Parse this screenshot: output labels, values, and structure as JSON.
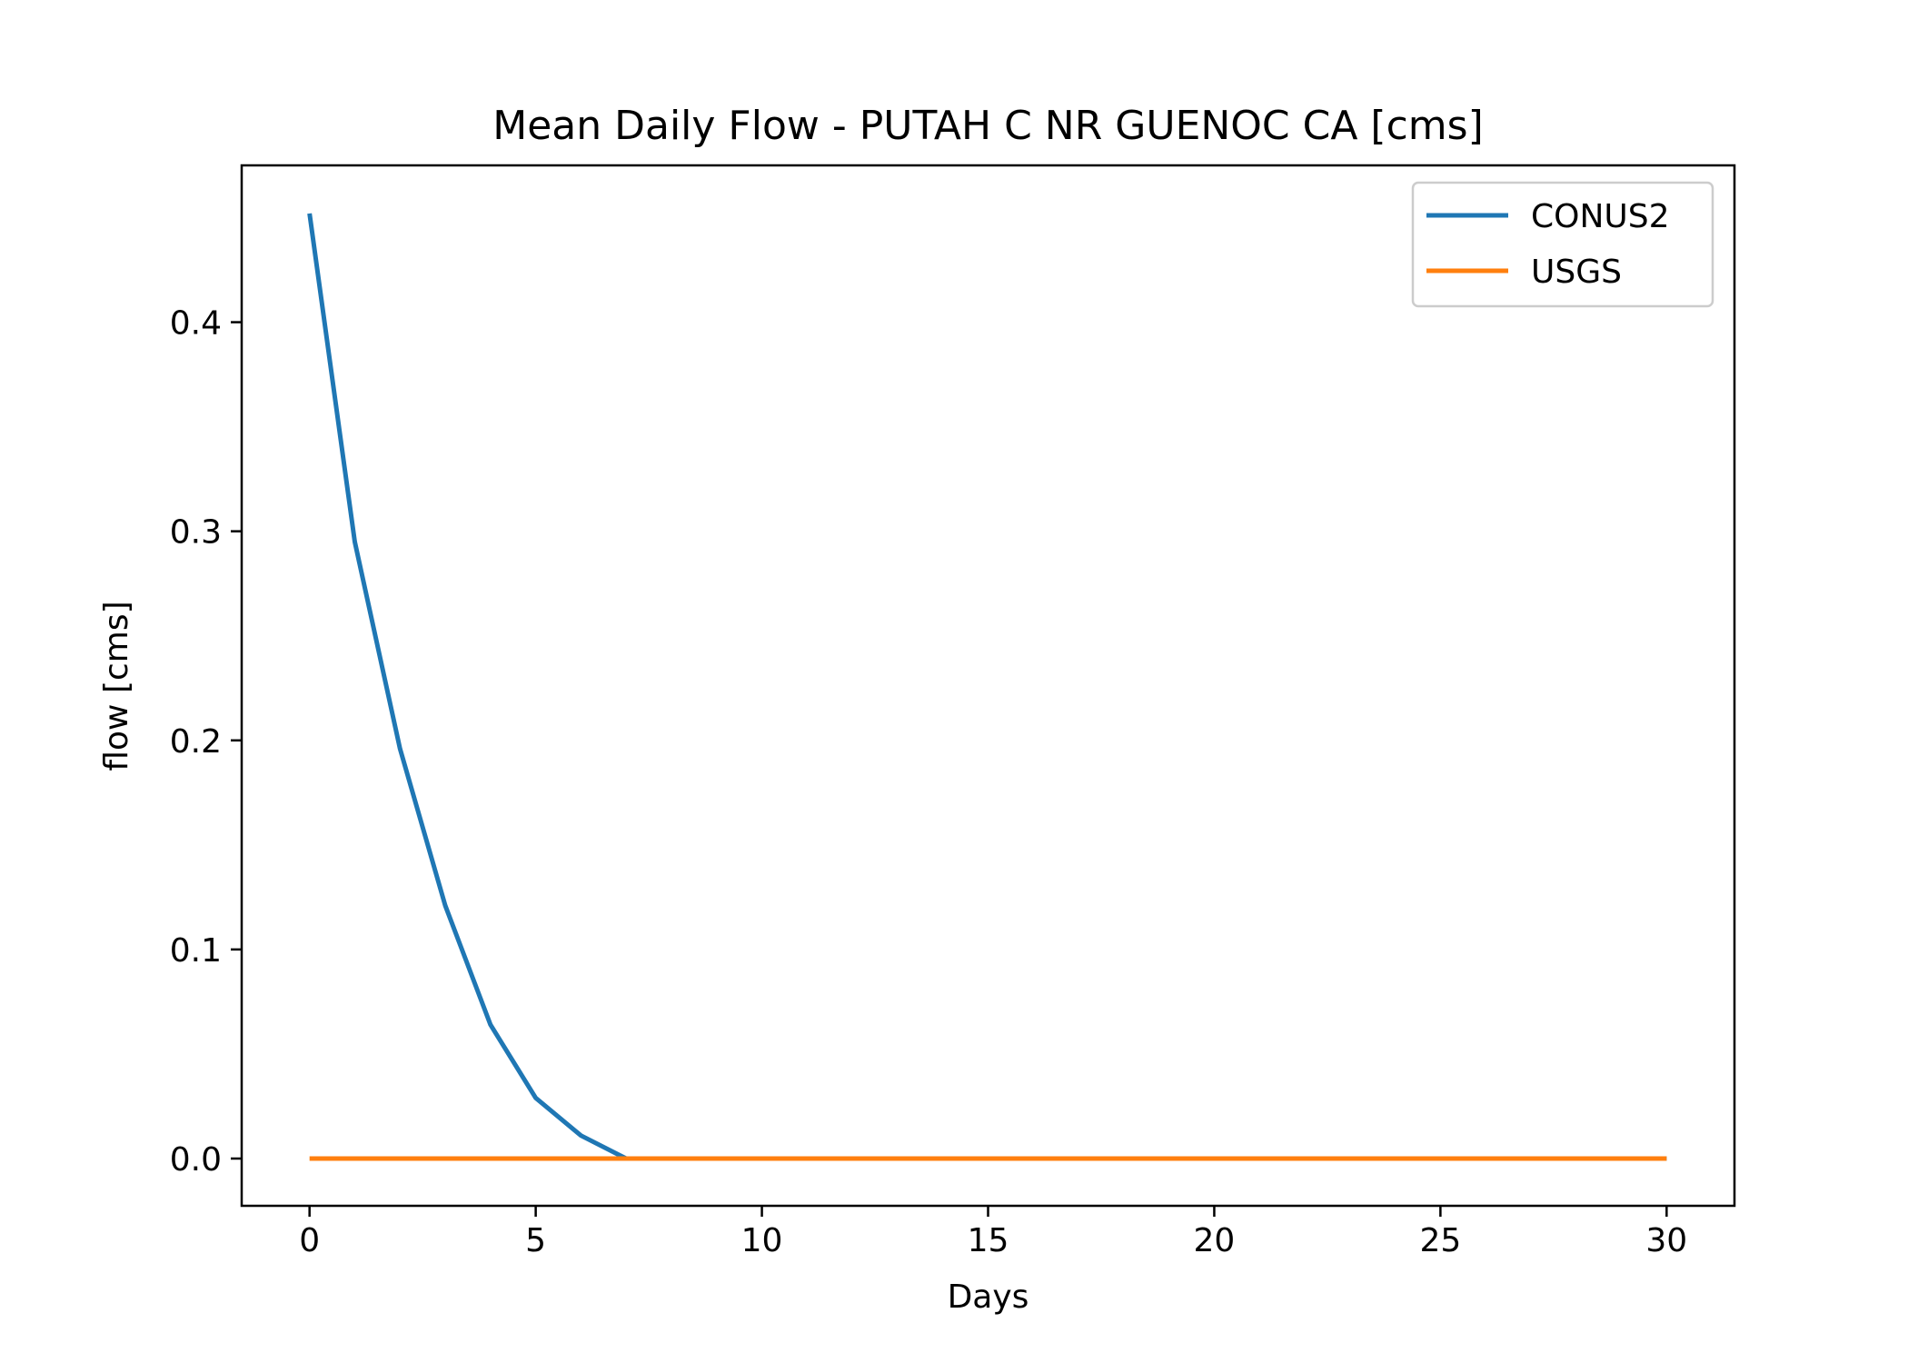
{
  "chart_data": {
    "type": "line",
    "title": "Mean Daily Flow - PUTAH C NR GUENOC CA [cms]",
    "xlabel": "Days",
    "ylabel": "flow [cms]",
    "xlim": [
      -1.5,
      31.5
    ],
    "ylim": [
      -0.0226,
      0.475
    ],
    "xticks": [
      0,
      5,
      10,
      15,
      20,
      25,
      30
    ],
    "xtick_labels": [
      "0",
      "5",
      "10",
      "15",
      "20",
      "25",
      "30"
    ],
    "yticks": [
      0.0,
      0.1,
      0.2,
      0.3,
      0.4
    ],
    "ytick_labels": [
      "0.0",
      "0.1",
      "0.2",
      "0.3",
      "0.4"
    ],
    "grid": false,
    "legend_position": "top-right",
    "x": [
      0,
      1,
      2,
      3,
      4,
      5,
      6,
      7,
      8,
      9,
      10,
      11,
      12,
      13,
      14,
      15,
      16,
      17,
      18,
      19,
      20,
      21,
      22,
      23,
      24,
      25,
      26,
      27,
      28,
      29,
      30
    ],
    "series": [
      {
        "name": "CONUS2",
        "color": "#1f77b4",
        "values": [
          0.452,
          0.295,
          0.196,
          0.121,
          0.064,
          0.029,
          0.011,
          0.0,
          0.0,
          0.0,
          0.0,
          0.0,
          0.0,
          0.0,
          0.0,
          0.0,
          0.0,
          0.0,
          0.0,
          0.0,
          0.0,
          0.0,
          0.0,
          0.0,
          0.0,
          0.0,
          0.0,
          0.0,
          0.0,
          0.0,
          0.0
        ]
      },
      {
        "name": "USGS",
        "color": "#ff7f0e",
        "values": [
          0.0,
          0.0,
          0.0,
          0.0,
          0.0,
          0.0,
          0.0,
          0.0,
          0.0,
          0.0,
          0.0,
          0.0,
          0.0,
          0.0,
          0.0,
          0.0,
          0.0,
          0.0,
          0.0,
          0.0,
          0.0,
          0.0,
          0.0,
          0.0,
          0.0,
          0.0,
          0.0,
          0.0,
          0.0,
          0.0,
          0.0
        ]
      }
    ]
  }
}
